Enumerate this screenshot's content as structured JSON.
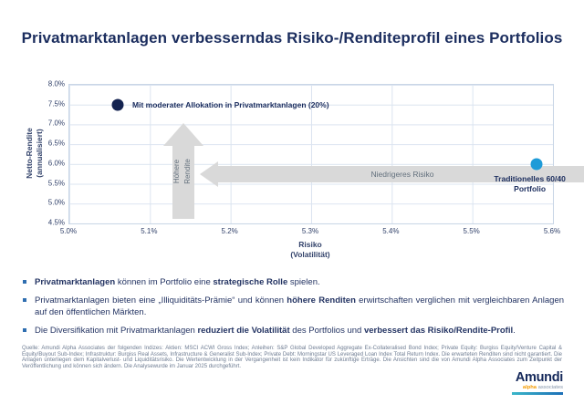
{
  "title": "Privatmarktanlagen verbesserndas Risiko-/Renditeprofil eines Portfolios",
  "chart_data": {
    "type": "scatter",
    "title": "",
    "xlabel_line1": "Risiko",
    "xlabel_line2": "(Volatilität)",
    "ylabel_line1": "Netto-Rendite",
    "ylabel_line2": "(annualisiert)",
    "xlim": [
      5.0,
      5.6
    ],
    "ylim": [
      4.5,
      8.0
    ],
    "grid": true,
    "legend": "none",
    "x_ticks": [
      "5.0%",
      "5.1%",
      "5.2%",
      "5.3%",
      "5.4%",
      "5.5%",
      "5.6%"
    ],
    "y_ticks": [
      "8.0%",
      "7.5%",
      "7.0%",
      "6.5%",
      "6.0%",
      "5.5%",
      "5.0%",
      "4.5%"
    ],
    "points": [
      {
        "name": "private-markets-portfolio",
        "x": 5.06,
        "y": 7.5,
        "label": "Mit moderater Allokation in Privatmarktanlagen (20%)",
        "label_pos": "right",
        "color": "#142350"
      },
      {
        "name": "traditional-60-40-portfolio",
        "x": 5.58,
        "y": 6.0,
        "label": "Traditionelles 60/40 Portfolio",
        "label_pos": "below",
        "color": "#1e9bd8"
      }
    ],
    "annotations": [
      {
        "text": "Höhere Rendite",
        "direction": "up"
      },
      {
        "text": "Niedrigeres Risiko",
        "direction": "left"
      }
    ]
  },
  "bullets": [
    [
      {
        "text": "Privatmarktanlagen",
        "bold": true
      },
      {
        "text": " können im Portfolio eine ",
        "bold": false
      },
      {
        "text": "strategische Rolle",
        "bold": true
      },
      {
        "text": " spielen.",
        "bold": false
      }
    ],
    [
      {
        "text": "Privatmarktanlagen bieten eine „Illiquiditäts-Prämie“ und können ",
        "bold": false
      },
      {
        "text": "höhere Renditen",
        "bold": true
      },
      {
        "text": " erwirtschaften verglichen mit vergleichbaren Anlagen auf den öffentlichen Märkten.",
        "bold": false
      }
    ],
    [
      {
        "text": "Die Diversifikation mit Privatmarktanlagen ",
        "bold": false
      },
      {
        "text": "reduziert die Volatilität",
        "bold": true
      },
      {
        "text": " des Portfolios und ",
        "bold": false
      },
      {
        "text": "verbessert das Risiko/Rendite-Profil",
        "bold": true
      },
      {
        "text": ".",
        "bold": false
      }
    ]
  ],
  "footnote": "Quelle: Amundi Alpha Associates der folgenden Indizes: Aktien: MSCI ACWI Gross Index;  Anleihen: S&P Global Developed Aggregate Ex-Collateralised Bond Index; Private Equity: Burgiss Equity/Venture Capital & Equity/Buyout Sub-Index; Infrastruktur: Burgiss Real Assets, Infrastructure & Generalist Sub-Index; Private Debt: Morningstar US Leveraged Loan Index Total Return Index. Die erwarteten Renditen sind nicht garantiert. Die Anlagen unterliegen dem Kapitalverlust- und Liquiditätsrisiko. Die Wertentwicklung in der Vergangenheit ist kein Indikator für zukünftige Erträge. Die Ansichten sind die von Amundi Alpha Associates zum Zeitpunkt der Veröffentlichung und können sich ändern. Die Analysewurde im Januar 2025 durchgeführt.",
  "logo": {
    "brand": "Amundi",
    "sub_accent": "alpha",
    "sub_rest": " associates"
  },
  "colors": {
    "navy_text": "#1b2d5e",
    "tick_text": "#33436b",
    "grid": "#dbe4f0",
    "arrow_fill": "#d9d9d9",
    "arrow_text": "#63707d",
    "dark_point": "#142350",
    "blue_point": "#1e9bd8",
    "bullet_marker": "#2f6eb0",
    "footnote_text": "#6e7c92",
    "logo_orange": "#f49b00",
    "logo_bar_start": "#3ab6c9",
    "logo_bar_end": "#1d70b7"
  }
}
